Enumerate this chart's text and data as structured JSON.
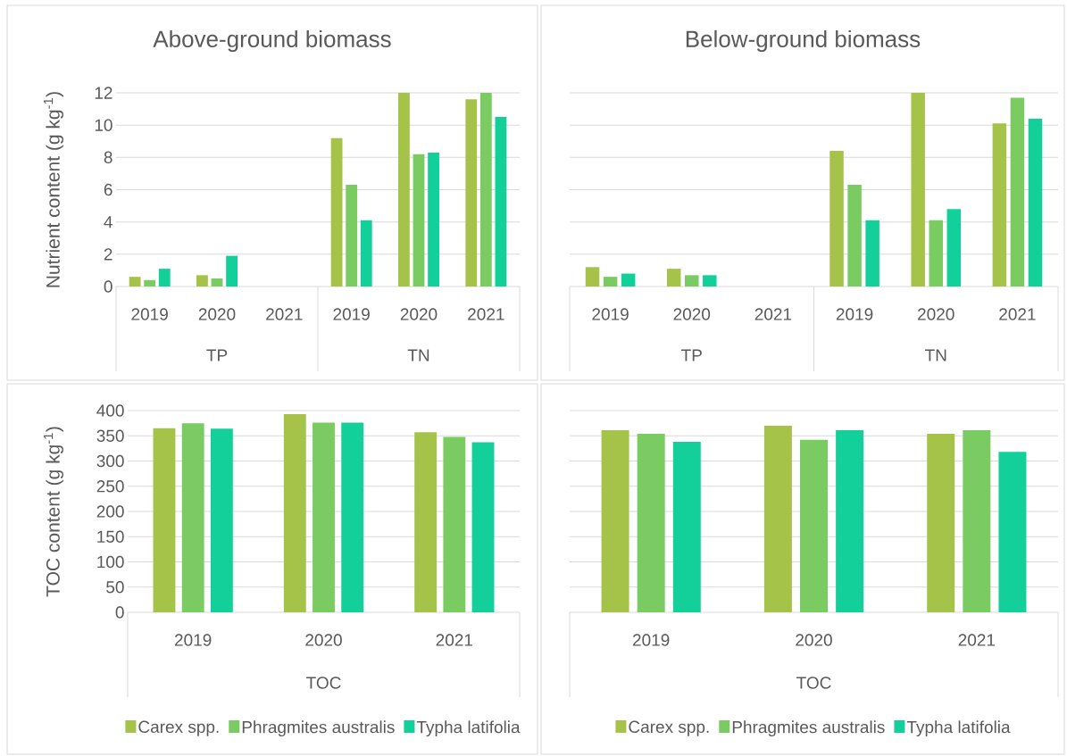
{
  "chart_data": [
    {
      "type": "bar",
      "title": "Above-ground biomass",
      "ylabel": "Nutrient content (g kg$^{-1}$)",
      "categories": [
        "2019",
        "2020",
        "2021",
        "2019",
        "2020",
        "2021"
      ],
      "annotations": [
        "TP",
        "TN"
      ],
      "ylim": [
        0,
        12
      ],
      "yticks": [
        0,
        2,
        4,
        6,
        8,
        10,
        12
      ],
      "grid": "y",
      "series": [
        {
          "color": "#a5c249",
          "values": [
            0.6,
            0.7,
            0,
            9.2,
            12,
            11.6
          ]
        },
        {
          "color": "#7acb62",
          "values": [
            0.4,
            0.5,
            0,
            6.3,
            8.2,
            12
          ]
        },
        {
          "color": "#13cf9a",
          "values": [
            1.1,
            1.9,
            0,
            4.1,
            8.3,
            10.5
          ]
        }
      ]
    },
    {
      "type": "bar",
      "title": "Below-ground biomass",
      "categories": [
        "2019",
        "2020",
        "2021",
        "2019",
        "2020",
        "2021"
      ],
      "annotations": [
        "TP",
        "TN"
      ],
      "ylim": [
        0,
        12
      ],
      "yticks": [
        0,
        2,
        4,
        6,
        8,
        10,
        12
      ],
      "grid": "y",
      "tick_labels": "x",
      "series": [
        {
          "color": "#a5c249",
          "values": [
            1.2,
            1.1,
            0,
            8.4,
            12,
            10.1
          ]
        },
        {
          "color": "#7acb62",
          "values": [
            0.6,
            0.7,
            0,
            6.3,
            4.1,
            11.7
          ]
        },
        {
          "color": "#13cf9a",
          "values": [
            0.8,
            0.7,
            0,
            4.1,
            4.8,
            10.4
          ]
        }
      ]
    },
    {
      "type": "bar",
      "ylabel": "TOC content (g kg$^{-1}$)",
      "xlabel": "TOC",
      "categories": [
        "2019",
        "2020",
        "2021"
      ],
      "ylim": [
        0,
        400
      ],
      "yticks": [
        0,
        50,
        100,
        150,
        200,
        250,
        300,
        350,
        400
      ],
      "grid": "y",
      "legend": "bottom",
      "series": [
        {
          "name": "Carex spp.",
          "color": "#a5c249",
          "values": [
            365,
            393,
            357
          ]
        },
        {
          "name": "Phragmites australis",
          "color": "#7acb62",
          "values": [
            375,
            376,
            348
          ]
        },
        {
          "name": "Typha latifolia",
          "color": "#13cf9a",
          "values": [
            364,
            376,
            337
          ]
        }
      ]
    },
    {
      "type": "bar",
      "xlabel": "TOC",
      "categories": [
        "2019",
        "2020",
        "2021"
      ],
      "ylim": [
        0,
        400
      ],
      "yticks": [
        0,
        50,
        100,
        150,
        200,
        250,
        300,
        350,
        400
      ],
      "grid": "y",
      "tick_labels": "x",
      "legend": "bottom",
      "series": [
        {
          "name": "Carex spp.",
          "color": "#a5c249",
          "values": [
            361,
            370,
            354
          ]
        },
        {
          "name": "Phragmites australis",
          "color": "#7acb62",
          "values": [
            354,
            342,
            361
          ]
        },
        {
          "name": "Typha latifolia",
          "color": "#13cf9a",
          "values": [
            338,
            361,
            318
          ]
        }
      ]
    }
  ]
}
